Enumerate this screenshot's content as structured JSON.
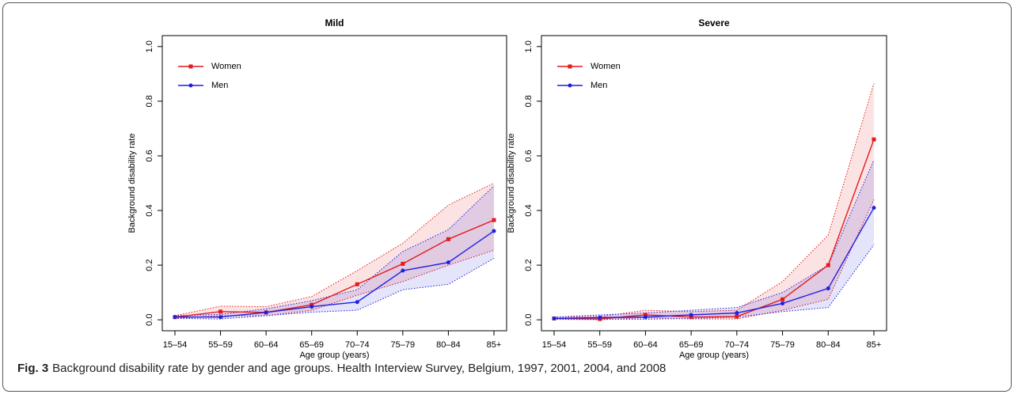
{
  "chart_data": [
    {
      "type": "line",
      "title": "Mild",
      "x_label": "Age group (years)",
      "y_label": "Background disability rate",
      "categories": [
        "15–54",
        "55–59",
        "60–64",
        "65–69",
        "70–74",
        "75–79",
        "80–84",
        "85+"
      ],
      "ylim": [
        -0.04,
        1.04
      ],
      "yticks": [
        {
          "value": 0,
          "label": "0.0"
        },
        0.2,
        0.4,
        0.6,
        0.8,
        {
          "value": 1,
          "label": "1.0"
        }
      ],
      "legend": "top-left",
      "series": [
        {
          "name": "Women",
          "color": "#e41a1c",
          "marker": "square",
          "values": [
            0.01,
            0.03,
            0.027,
            0.055,
            0.13,
            0.205,
            0.295,
            0.365
          ],
          "upper": [
            0.015,
            0.05,
            0.048,
            0.085,
            0.18,
            0.28,
            0.42,
            0.5
          ],
          "lower": [
            0.005,
            0.015,
            0.015,
            0.035,
            0.09,
            0.14,
            0.2,
            0.255
          ]
        },
        {
          "name": "Men",
          "color": "#1f1fe0",
          "marker": "circle",
          "values": [
            0.01,
            0.01,
            0.027,
            0.048,
            0.065,
            0.18,
            0.21,
            0.325
          ],
          "upper": [
            0.015,
            0.02,
            0.04,
            0.07,
            0.11,
            0.25,
            0.33,
            0.49
          ],
          "lower": [
            0.005,
            0.003,
            0.015,
            0.028,
            0.035,
            0.11,
            0.13,
            0.225
          ]
        }
      ]
    },
    {
      "type": "line",
      "title": "Severe",
      "x_label": "Age group (years)",
      "y_label": "Background disability rate",
      "categories": [
        "15–54",
        "55–59",
        "60–64",
        "65–69",
        "70–74",
        "75–79",
        "80–84",
        "85+"
      ],
      "ylim": [
        -0.04,
        1.04
      ],
      "yticks": [
        {
          "value": 0,
          "label": "0.0"
        },
        0.2,
        0.4,
        0.6,
        0.8,
        {
          "value": 1,
          "label": "1.0"
        }
      ],
      "legend": "top-left",
      "series": [
        {
          "name": "Women",
          "color": "#e41a1c",
          "marker": "square",
          "values": [
            0.005,
            0.003,
            0.018,
            0.01,
            0.012,
            0.075,
            0.2,
            0.66
          ],
          "upper": [
            0.01,
            0.012,
            0.035,
            0.03,
            0.035,
            0.14,
            0.31,
            0.865
          ],
          "lower": [
            0.002,
            0.0,
            0.008,
            0.003,
            0.003,
            0.035,
            0.075,
            0.44
          ]
        },
        {
          "name": "Men",
          "color": "#1f1fe0",
          "marker": "circle",
          "values": [
            0.005,
            0.008,
            0.01,
            0.018,
            0.025,
            0.06,
            0.115,
            0.41
          ],
          "upper": [
            0.01,
            0.018,
            0.025,
            0.035,
            0.045,
            0.1,
            0.2,
            0.585
          ],
          "lower": [
            0.002,
            0.002,
            0.002,
            0.005,
            0.01,
            0.03,
            0.045,
            0.275
          ]
        }
      ]
    }
  ],
  "caption": {
    "label": "Fig. 3",
    "text": "Background disability rate by gender and age groups. Health Interview Survey, Belgium, 1997, 2001, 2004, and 2008"
  }
}
